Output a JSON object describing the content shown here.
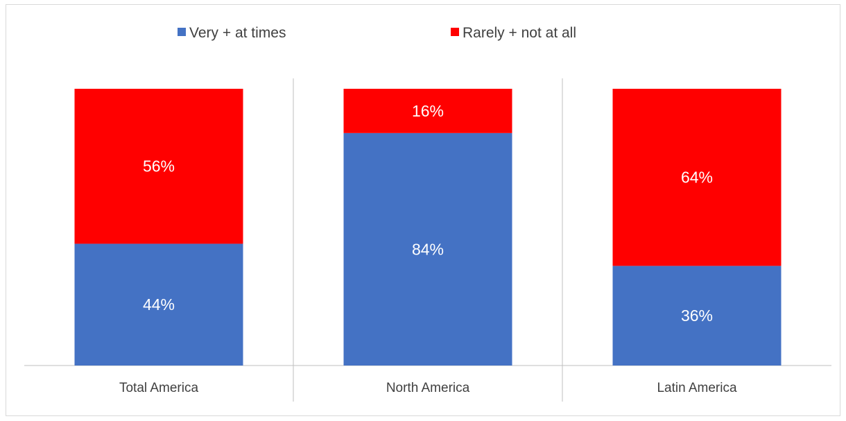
{
  "chart_data": {
    "type": "bar",
    "stacked": true,
    "percent_stacked": true,
    "categories": [
      "Total America",
      "North America",
      "Latin America"
    ],
    "series": [
      {
        "name": "Very + at times",
        "values": [
          44,
          84,
          36
        ],
        "labels": [
          "44%",
          "84%",
          "36%"
        ],
        "color": "#4472C4"
      },
      {
        "name": "Rarely + not at all",
        "values": [
          56,
          16,
          64
        ],
        "labels": [
          "56%",
          "16%",
          "64%"
        ],
        "color": "#FF0000"
      }
    ],
    "ylim": [
      0,
      100
    ],
    "legend_position": "top-center",
    "grid": false,
    "category_separators": true
  }
}
